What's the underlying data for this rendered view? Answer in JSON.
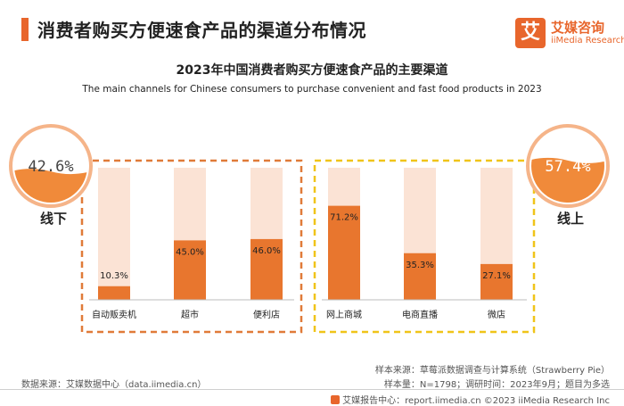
{
  "header": {
    "title": "消费者购买方便速食产品的渠道分布情况"
  },
  "logo": {
    "glyph": "艾",
    "name_cn": "艾媒咨询",
    "name_en": "iiMedia Research"
  },
  "chart_data": {
    "type": "bar",
    "title": "2023年中国消费者购买方便速食产品的主要渠道",
    "subtitle": "The main channels for Chinese consumers to purchase convenient and fast food products in 2023",
    "ylim": [
      0,
      100
    ],
    "unit": "%",
    "groups": [
      {
        "name": "线下",
        "total": 42.6,
        "total_label": "42.6%",
        "categories": [
          "自动贩卖机",
          "超市",
          "便利店"
        ],
        "values": [
          10.3,
          45.0,
          46.0
        ],
        "labels": [
          "10.3%",
          "45.0%",
          "46.0%"
        ],
        "border_color": "#e07b39"
      },
      {
        "name": "线上",
        "total": 57.4,
        "total_label": "57.4%",
        "categories": [
          "网上商城",
          "电商直播",
          "微店"
        ],
        "values": [
          71.2,
          35.3,
          27.1
        ],
        "labels": [
          "71.2%",
          "35.3%",
          "27.1%"
        ],
        "border_color": "#f0c419"
      }
    ],
    "colors": {
      "bar": "#e8762e",
      "track": "#fbe3d5",
      "circle_fill": "#f08a3a",
      "circle_ring": "#f5b489"
    }
  },
  "footer": {
    "source": "数据来源：艾媒数据中心（data.iimedia.cn）",
    "sample_source": "样本来源：草莓派数据调查与计算系统（Strawberry Pie）",
    "sample_size": "样本量：N=1798；调研时间：2023年9月；题目为多选",
    "report": "艾媒报告中心：report.iimedia.cn ©2023 iiMedia Research Inc"
  }
}
